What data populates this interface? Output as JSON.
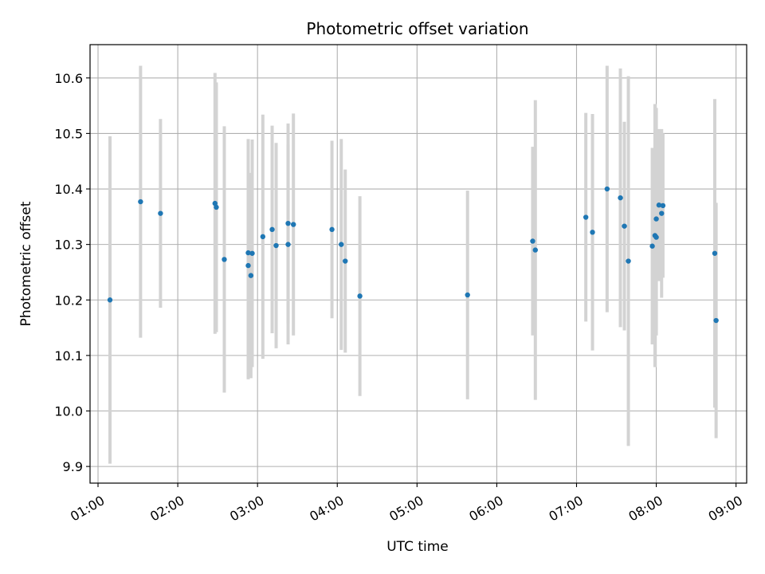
{
  "chart_data": {
    "type": "scatter",
    "title": "Photometric offset variation",
    "xlabel": "UTC time",
    "ylabel": "Photometric offset",
    "xlim": [
      "00:54",
      "09:08"
    ],
    "ylim": [
      9.87,
      10.66
    ],
    "grid": true,
    "x_ticks": [
      "01:00",
      "02:00",
      "03:00",
      "04:00",
      "05:00",
      "06:00",
      "07:00",
      "08:00",
      "09:00"
    ],
    "y_ticks": [
      9.9,
      10.0,
      10.1,
      10.2,
      10.3,
      10.4,
      10.5,
      10.6
    ],
    "point_color": "#1f77b4",
    "errorbar_color": "#d3d3d3",
    "series": [
      {
        "points": [
          {
            "x": "01:09",
            "y": 10.2,
            "err": 0.295
          },
          {
            "x": "01:32",
            "y": 10.377,
            "err": 0.245
          },
          {
            "x": "01:47",
            "y": 10.356,
            "err": 0.17
          },
          {
            "x": "02:28",
            "y": 10.374,
            "err": 0.235
          },
          {
            "x": "02:29",
            "y": 10.367,
            "err": 0.225
          },
          {
            "x": "02:35",
            "y": 10.273,
            "err": 0.24
          },
          {
            "x": "02:53",
            "y": 10.285,
            "err": 0.205
          },
          {
            "x": "02:53",
            "y": 10.262,
            "err": 0.205
          },
          {
            "x": "02:55",
            "y": 10.244,
            "err": 0.185
          },
          {
            "x": "02:56",
            "y": 10.284,
            "err": 0.205
          },
          {
            "x": "03:04",
            "y": 10.314,
            "err": 0.22
          },
          {
            "x": "03:11",
            "y": 10.327,
            "err": 0.187
          },
          {
            "x": "03:14",
            "y": 10.298,
            "err": 0.185
          },
          {
            "x": "03:23",
            "y": 10.338,
            "err": 0.18
          },
          {
            "x": "03:23",
            "y": 10.3,
            "err": 0.18
          },
          {
            "x": "03:27",
            "y": 10.336,
            "err": 0.2
          },
          {
            "x": "03:56",
            "y": 10.327,
            "err": 0.16
          },
          {
            "x": "04:03",
            "y": 10.3,
            "err": 0.19
          },
          {
            "x": "04:06",
            "y": 10.27,
            "err": 0.165
          },
          {
            "x": "04:17",
            "y": 10.207,
            "err": 0.18
          },
          {
            "x": "05:38",
            "y": 10.209,
            "err": 0.188
          },
          {
            "x": "06:27",
            "y": 10.306,
            "err": 0.17
          },
          {
            "x": "06:29",
            "y": 10.29,
            "err": 0.27
          },
          {
            "x": "07:07",
            "y": 10.349,
            "err": 0.188
          },
          {
            "x": "07:12",
            "y": 10.322,
            "err": 0.213
          },
          {
            "x": "07:23",
            "y": 10.4,
            "err": 0.222
          },
          {
            "x": "07:33",
            "y": 10.384,
            "err": 0.233
          },
          {
            "x": "07:36",
            "y": 10.333,
            "err": 0.188
          },
          {
            "x": "07:39",
            "y": 10.27,
            "err": 0.333
          },
          {
            "x": "07:57",
            "y": 10.297,
            "err": 0.177
          },
          {
            "x": "07:59",
            "y": 10.316,
            "err": 0.237
          },
          {
            "x": "08:00",
            "y": 10.346,
            "err": 0.2
          },
          {
            "x": "08:00",
            "y": 10.313,
            "err": 0.177
          },
          {
            "x": "08:02",
            "y": 10.371,
            "err": 0.137
          },
          {
            "x": "08:04",
            "y": 10.356,
            "err": 0.152
          },
          {
            "x": "08:05",
            "y": 10.37,
            "err": 0.13
          },
          {
            "x": "08:44",
            "y": 10.284,
            "err": 0.278
          },
          {
            "x": "08:45",
            "y": 10.163,
            "err": 0.212
          }
        ]
      }
    ]
  }
}
